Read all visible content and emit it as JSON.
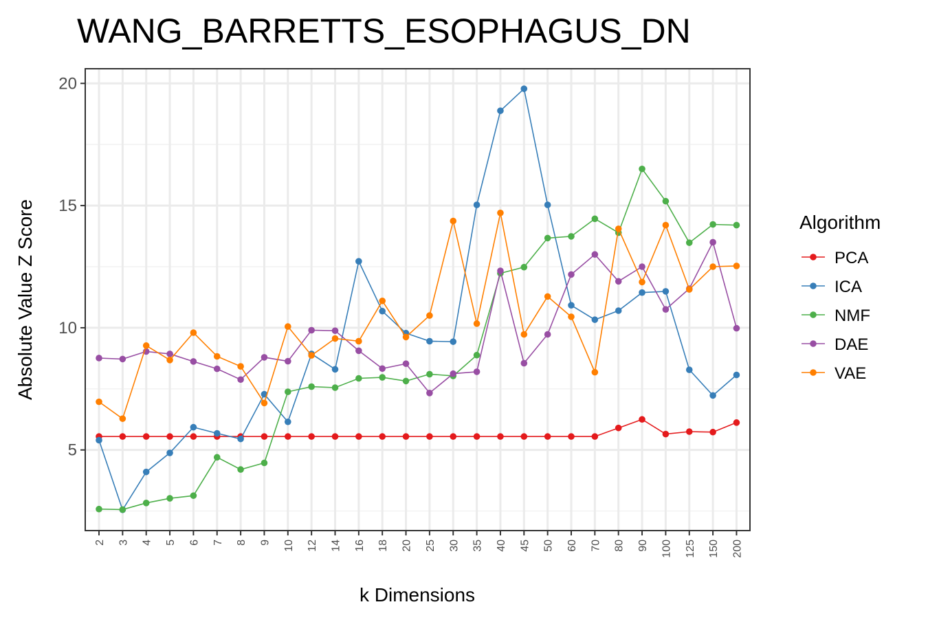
{
  "chart_data": {
    "type": "line",
    "title": "WANG_BARRETTS_ESOPHAGUS_DN",
    "xlabel": "k Dimensions",
    "ylabel": "Absolute Value Z Score",
    "categories": [
      "2",
      "3",
      "4",
      "5",
      "6",
      "7",
      "8",
      "9",
      "10",
      "12",
      "14",
      "16",
      "18",
      "20",
      "25",
      "30",
      "35",
      "40",
      "45",
      "50",
      "60",
      "70",
      "80",
      "90",
      "100",
      "125",
      "150",
      "200"
    ],
    "ylim": [
      1.7,
      20.6
    ],
    "yticks": [
      5,
      10,
      15,
      20
    ],
    "ytick_labels": [
      "5",
      "10",
      "15",
      "20"
    ],
    "grid": true,
    "legend": {
      "title": "Algorithm",
      "placement": "right"
    },
    "series": [
      {
        "name": "PCA",
        "color": "#e41a1c",
        "values": [
          5.55,
          5.55,
          5.55,
          5.55,
          5.55,
          5.55,
          5.55,
          5.55,
          5.55,
          5.55,
          5.55,
          5.55,
          5.55,
          5.55,
          5.55,
          5.55,
          5.55,
          5.55,
          5.55,
          5.55,
          5.55,
          5.55,
          5.9,
          6.25,
          5.65,
          5.75,
          5.73,
          6.12
        ]
      },
      {
        "name": "ICA",
        "color": "#377eb8",
        "values": [
          5.4,
          2.55,
          4.1,
          4.88,
          5.93,
          5.68,
          5.45,
          7.28,
          6.15,
          8.93,
          8.3,
          12.72,
          10.68,
          9.78,
          9.45,
          9.43,
          15.03,
          18.88,
          19.78,
          15.03,
          10.92,
          10.33,
          10.7,
          11.44,
          11.49,
          8.28,
          7.23,
          8.07
        ]
      },
      {
        "name": "NMF",
        "color": "#4daf4a",
        "values": [
          2.58,
          2.56,
          2.83,
          3.02,
          3.13,
          4.7,
          4.2,
          4.47,
          7.38,
          7.59,
          7.55,
          7.93,
          7.97,
          7.82,
          8.1,
          8.03,
          8.88,
          12.23,
          12.48,
          13.67,
          13.74,
          14.46,
          13.89,
          16.5,
          15.18,
          13.48,
          14.23,
          14.2
        ]
      },
      {
        "name": "DAE",
        "color": "#984ea3",
        "values": [
          8.76,
          8.72,
          9.03,
          8.93,
          8.62,
          8.32,
          7.88,
          8.79,
          8.63,
          9.9,
          9.88,
          9.06,
          8.33,
          8.53,
          7.33,
          8.12,
          8.2,
          12.33,
          8.55,
          9.73,
          12.18,
          13.0,
          11.9,
          12.5,
          10.75,
          11.6,
          13.5,
          9.98
        ]
      },
      {
        "name": "VAE",
        "color": "#ff7f00",
        "values": [
          6.97,
          6.28,
          9.27,
          8.68,
          9.8,
          8.83,
          8.42,
          6.92,
          10.05,
          8.87,
          9.56,
          9.45,
          11.1,
          9.62,
          10.5,
          14.37,
          10.17,
          14.7,
          9.73,
          11.28,
          10.45,
          8.18,
          14.05,
          11.87,
          14.2,
          11.57,
          12.5,
          12.53
        ]
      }
    ]
  }
}
